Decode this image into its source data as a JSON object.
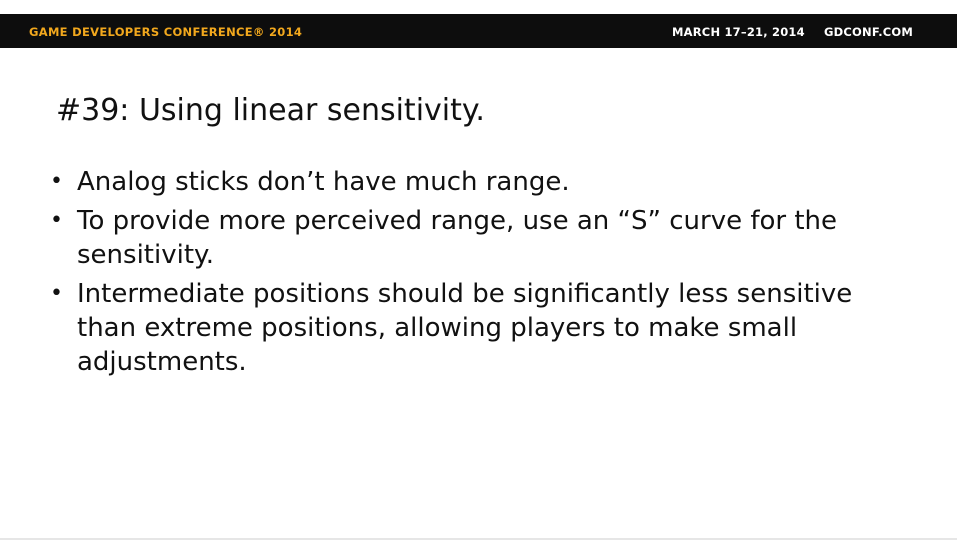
{
  "header": {
    "conference_name": "GAME DEVELOPERS CONFERENCE® 2014",
    "dates": "MARCH 17–21, 2014",
    "website": "GDCONF.COM"
  },
  "slide": {
    "title": "#39: Using linear sensitivity.",
    "bullets": [
      {
        "marker": "•",
        "text": "Analog sticks don’t have much range."
      },
      {
        "marker": "•",
        "text": "To provide more perceived range, use an “S” curve for the sensitivity."
      },
      {
        "marker": "•",
        "text": "Intermediate positions should be significantly less sensitive than extreme positions, allowing players to make small adjustments."
      }
    ]
  },
  "colors": {
    "header_background": "#0d0d0d",
    "brand_orange": "#f2a81d",
    "header_text": "#ffffff",
    "body_text": "#111111",
    "slide_background": "#ffffff"
  }
}
